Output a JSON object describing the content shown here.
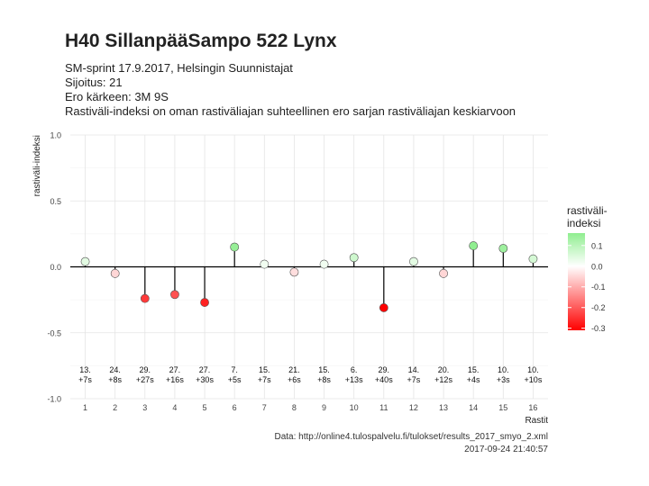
{
  "header": {
    "title": "H40 SillanpääSampo 522 Lynx",
    "subtitle_lines": [
      "SM-sprint 17.9.2017, Helsingin Suunnistajat",
      "Sijoitus: 21",
      "Ero kärkeen: 3M 9S",
      "Rastiväli-indeksi on oman rastiväliajan suhteellinen ero sarjan rastiväliajan keskiarvoon"
    ]
  },
  "caption": {
    "line1": "Data: http://online4.tulospalvelu.fi/tulokset/results_2017_smyo_2.xml",
    "line2": "2017-09-24 21:40:57"
  },
  "chart_data": {
    "type": "lollipop",
    "xlabel": "Rastit",
    "ylabel": "rastiväli-indeksi",
    "x": [
      1,
      2,
      3,
      4,
      5,
      6,
      7,
      8,
      9,
      10,
      11,
      12,
      13,
      14,
      15,
      16
    ],
    "values": [
      0.04,
      -0.05,
      -0.24,
      -0.21,
      -0.27,
      0.15,
      0.02,
      -0.04,
      0.02,
      0.07,
      -0.31,
      0.04,
      -0.05,
      0.16,
      0.14,
      0.06
    ],
    "rank_labels": [
      "13.",
      "24.",
      "29.",
      "27.",
      "27.",
      "7.",
      "15.",
      "21.",
      "15.",
      "6.",
      "29.",
      "14.",
      "20.",
      "15.",
      "10.",
      "10."
    ],
    "diff_labels": [
      "+7s",
      "+8s",
      "+27s",
      "+16s",
      "+30s",
      "+5s",
      "+7s",
      "+6s",
      "+8s",
      "+13s",
      "+40s",
      "+7s",
      "+12s",
      "+4s",
      "+3s",
      "+10s"
    ],
    "xlim": [
      0.5,
      16.5
    ],
    "ylim": [
      -1.0,
      1.0
    ],
    "yticks": [
      -1.0,
      -0.5,
      0.0,
      0.5,
      1.0
    ],
    "ytick_labels": [
      "-1.0",
      "-0.5",
      "0.0",
      "0.5",
      "1.0"
    ],
    "grid": true,
    "legend": {
      "title_line1": "rastiväli-",
      "title_line2": "indeksi",
      "position": "right",
      "ticks": [
        0.1,
        0.0,
        -0.1,
        -0.2,
        -0.3
      ],
      "tick_labels": [
        "0.1",
        "0.0",
        "-0.1",
        "-0.2",
        "-0.3"
      ],
      "range": [
        -0.31,
        0.16
      ],
      "color_low": "#ff0000",
      "color_mid": "#ffffff",
      "color_high": "#90ee90"
    }
  }
}
